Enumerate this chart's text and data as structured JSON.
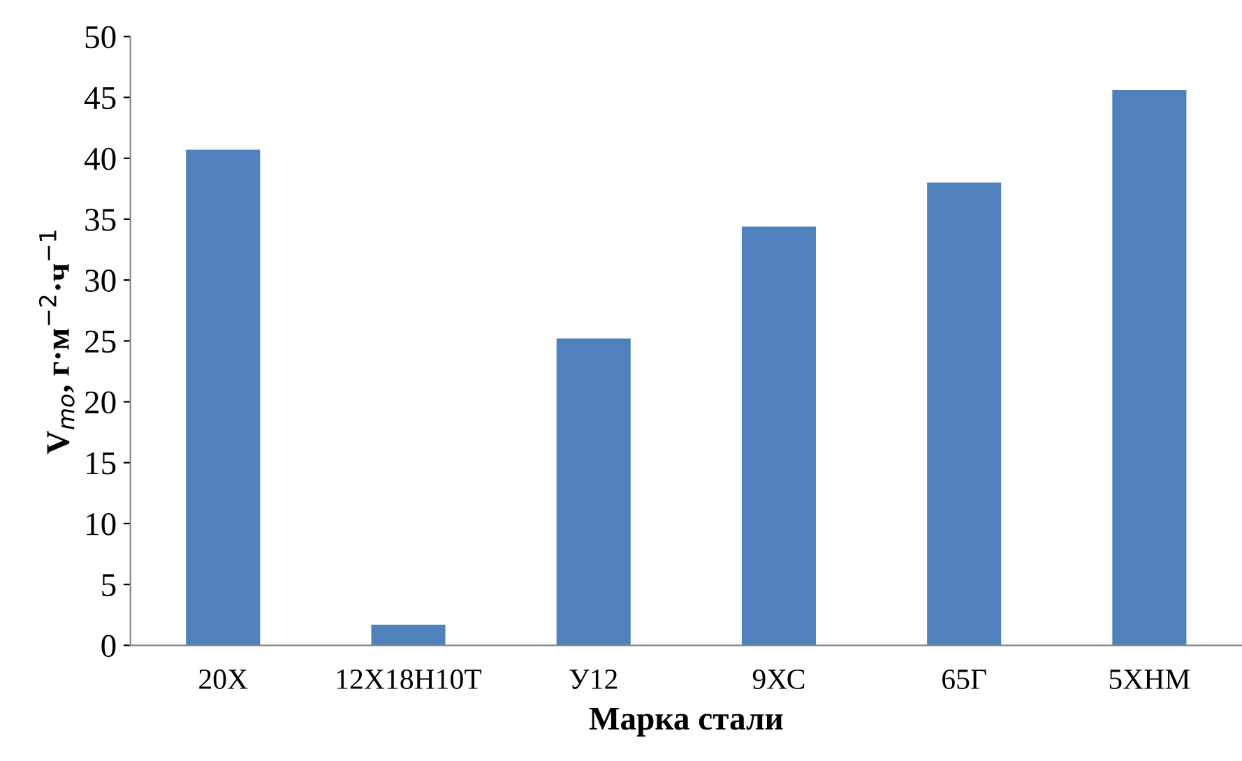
{
  "chart_data": {
    "type": "bar",
    "xlabel": "Марка стали",
    "ylabel": "V$_{mo}$, г·м$^{−2}$·ч$^{−1}$",
    "categories": [
      "20Х",
      "12Х18Н10Т",
      "У12",
      "9ХС",
      "65Г",
      "5ХНМ"
    ],
    "values": [
      40.7,
      1.7,
      25.2,
      34.4,
      38.0,
      45.6
    ],
    "color": "#4f81bd",
    "ylim": [
      0,
      50
    ],
    "yticks": [
      0,
      5,
      10,
      15,
      20,
      25,
      30,
      35,
      40,
      45,
      50
    ],
    "grid": false
  }
}
